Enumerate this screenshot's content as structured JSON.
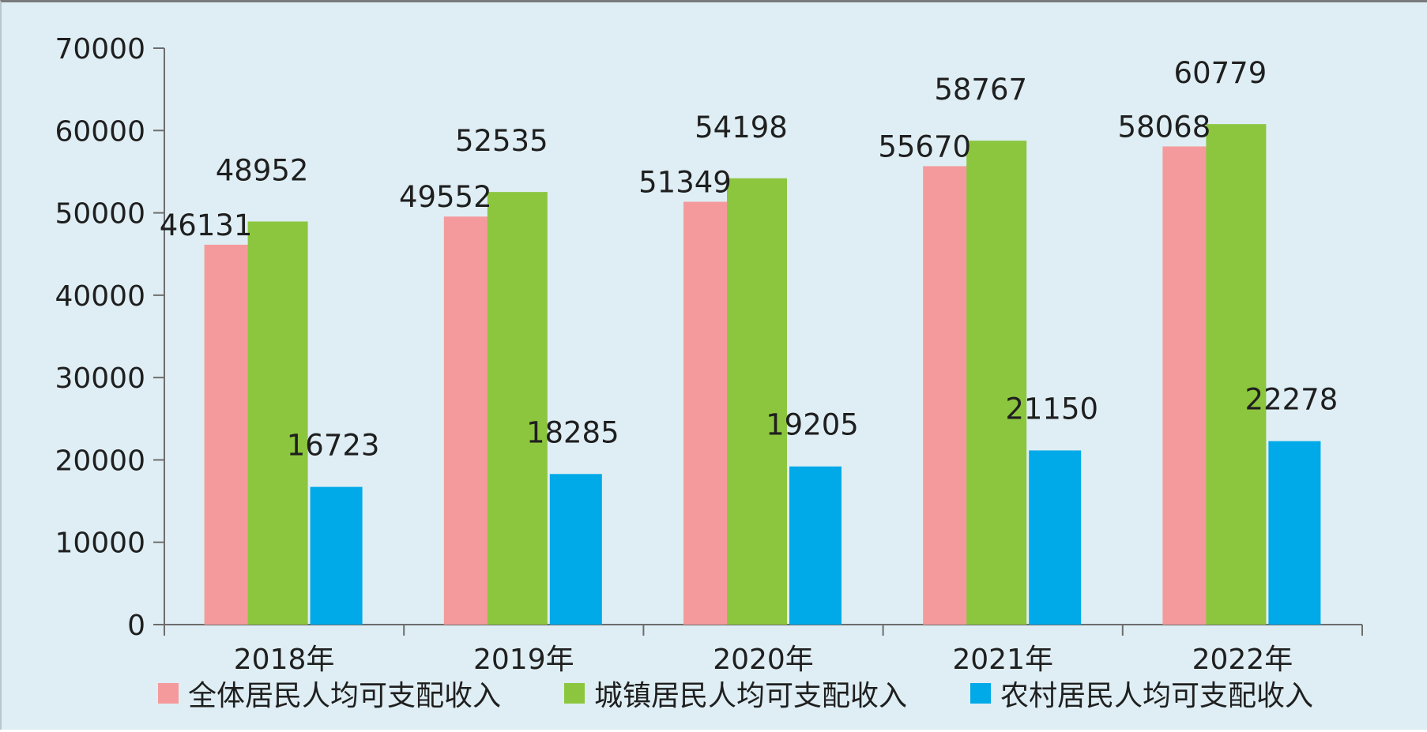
{
  "chart_data": {
    "type": "bar",
    "title": "",
    "xlabel": "",
    "ylabel": "",
    "categories": [
      "2018年",
      "2019年",
      "2020年",
      "2021年",
      "2022年"
    ],
    "series": [
      {
        "name": "全体居民人均可支配收入",
        "color": "#f59a9c",
        "values": [
          46131,
          49552,
          51349,
          55670,
          58068
        ]
      },
      {
        "name": "城镇居民人均可支配收入",
        "color": "#8cc63f",
        "values": [
          48952,
          52535,
          54198,
          58767,
          60779
        ]
      },
      {
        "name": "农村居民人均可支配收入",
        "color": "#00a9e8",
        "values": [
          16723,
          18285,
          19205,
          21150,
          22278
        ]
      }
    ],
    "ylim": [
      0,
      70000
    ],
    "yticks": [
      "0",
      "10000",
      "20000",
      "30000",
      "40000",
      "50000",
      "60000",
      "70000"
    ],
    "data_labels": [
      [
        "46131",
        "49552",
        "51349",
        "55670",
        "58068"
      ],
      [
        "48952",
        "52535",
        "54198",
        "58767",
        "60779"
      ],
      [
        "16723",
        "18285",
        "19205",
        "21150",
        "22278"
      ]
    ],
    "grid": false,
    "legend_position": "bottom",
    "background_color": "#deeef4"
  }
}
